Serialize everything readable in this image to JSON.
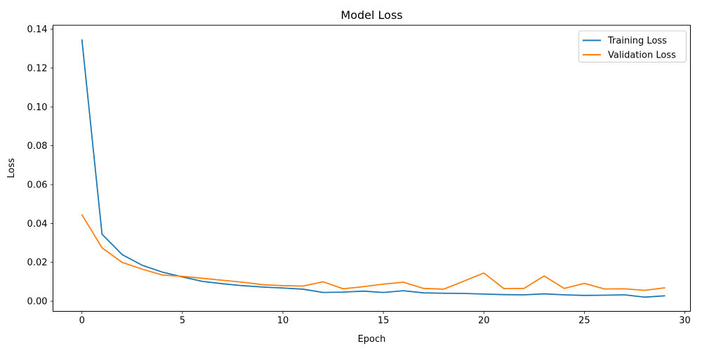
{
  "chart_data": {
    "type": "line",
    "title": "Model Loss",
    "xlabel": "Epoch",
    "ylabel": "Loss",
    "grid": false,
    "legend_position": "upper right",
    "background_color": "#ffffff",
    "axis_color": "#000000",
    "x": [
      0,
      1,
      2,
      3,
      4,
      5,
      6,
      7,
      8,
      9,
      10,
      11,
      12,
      13,
      14,
      15,
      16,
      17,
      18,
      19,
      20,
      21,
      22,
      23,
      24,
      25,
      26,
      27,
      28,
      29
    ],
    "series": [
      {
        "name": "Training Loss",
        "color": "#1f77b4",
        "values": [
          0.1345,
          0.0345,
          0.024,
          0.0185,
          0.015,
          0.0125,
          0.0102,
          0.009,
          0.008,
          0.0073,
          0.0068,
          0.0062,
          0.0045,
          0.0047,
          0.0052,
          0.0045,
          0.0054,
          0.0043,
          0.0041,
          0.004,
          0.0037,
          0.0034,
          0.0033,
          0.0038,
          0.0033,
          0.003,
          0.0031,
          0.0033,
          0.0021,
          0.0028
        ]
      },
      {
        "name": "Validation Loss",
        "color": "#ff7f0e",
        "values": [
          0.0445,
          0.0275,
          0.02,
          0.0165,
          0.0135,
          0.0128,
          0.0118,
          0.0108,
          0.0098,
          0.0085,
          0.008,
          0.0078,
          0.01,
          0.0064,
          0.0075,
          0.0088,
          0.0098,
          0.0066,
          0.0062,
          0.0103,
          0.0145,
          0.0065,
          0.0066,
          0.013,
          0.0066,
          0.0092,
          0.0063,
          0.0064,
          0.0056,
          0.0069
        ]
      }
    ],
    "xlim": [
      -1.44,
      30.28
    ],
    "ylim": [
      -0.0052,
      0.142
    ],
    "x_ticks": [
      0,
      5,
      10,
      15,
      20,
      25,
      30
    ],
    "y_ticks": [
      0.0,
      0.02,
      0.04,
      0.06,
      0.08,
      0.1,
      0.12,
      0.14
    ],
    "y_tick_decimals": 2
  }
}
